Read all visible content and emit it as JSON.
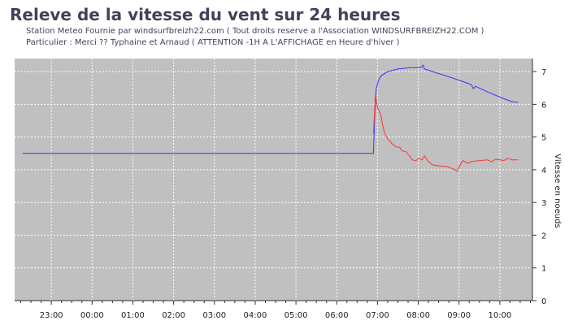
{
  "header": {
    "title": "Releve de la vitesse du vent sur 24 heures",
    "subtitle1": "Station Meteo Fournie  par windsurfbreizh22.com  ( Tout droits reserve a l'Association WINDSURFBREIZH22.COM )",
    "subtitle2": "Particulier :  Merci ?? Typhaine et Arnaud  ( ATTENTION -1H A L'AFFICHAGE en Heure d'hiver )"
  },
  "colors": {
    "plot_bg": "#c0c0c0",
    "series_max": "#3333ff",
    "series_avg": "#ff3333",
    "grid": "#ffffff"
  },
  "chart_data": {
    "type": "line",
    "ylabel": "Vitesse en noeuds",
    "ylim": [
      0,
      7.4
    ],
    "yticks": [
      0,
      1,
      2,
      3,
      4,
      5,
      6,
      7
    ],
    "xlim": [
      -1.9,
      10.8
    ],
    "xticks": [
      {
        "v": -1,
        "label": "23:00"
      },
      {
        "v": 0,
        "label": "00:00"
      },
      {
        "v": 1,
        "label": "01:00"
      },
      {
        "v": 2,
        "label": "02:00"
      },
      {
        "v": 3,
        "label": "03:00"
      },
      {
        "v": 4,
        "label": "04:00"
      },
      {
        "v": 5,
        "label": "05:00"
      },
      {
        "v": 6,
        "label": "06:00"
      },
      {
        "v": 7,
        "label": "07:00"
      },
      {
        "v": 8,
        "label": "08:00"
      },
      {
        "v": 9,
        "label": "09:00"
      },
      {
        "v": 10,
        "label": "10:00"
      }
    ],
    "grid": true,
    "series": [
      {
        "color": "#3333ff",
        "points": [
          [
            -1.7,
            4.5
          ],
          [
            6.9,
            4.5
          ],
          [
            6.93,
            5.6
          ],
          [
            6.97,
            6.5
          ],
          [
            7.03,
            6.75
          ],
          [
            7.1,
            6.88
          ],
          [
            7.25,
            7.0
          ],
          [
            7.5,
            7.08
          ],
          [
            7.8,
            7.12
          ],
          [
            8.0,
            7.12
          ],
          [
            8.08,
            7.14
          ],
          [
            8.12,
            7.2
          ],
          [
            8.15,
            7.08
          ],
          [
            8.4,
            6.98
          ],
          [
            8.7,
            6.86
          ],
          [
            9.0,
            6.74
          ],
          [
            9.3,
            6.6
          ],
          [
            9.35,
            6.48
          ],
          [
            9.4,
            6.55
          ],
          [
            9.7,
            6.38
          ],
          [
            10.0,
            6.22
          ],
          [
            10.3,
            6.08
          ],
          [
            10.45,
            6.06
          ]
        ]
      },
      {
        "color": "#ff3333",
        "points": [
          [
            6.9,
            5.1
          ],
          [
            6.95,
            6.3
          ],
          [
            7.0,
            5.9
          ],
          [
            7.08,
            5.7
          ],
          [
            7.12,
            5.4
          ],
          [
            7.18,
            5.1
          ],
          [
            7.25,
            4.95
          ],
          [
            7.35,
            4.8
          ],
          [
            7.45,
            4.7
          ],
          [
            7.55,
            4.68
          ],
          [
            7.6,
            4.58
          ],
          [
            7.7,
            4.55
          ],
          [
            7.8,
            4.4
          ],
          [
            7.85,
            4.3
          ],
          [
            7.95,
            4.28
          ],
          [
            8.0,
            4.35
          ],
          [
            8.1,
            4.3
          ],
          [
            8.15,
            4.42
          ],
          [
            8.25,
            4.25
          ],
          [
            8.35,
            4.15
          ],
          [
            8.5,
            4.12
          ],
          [
            8.6,
            4.1
          ],
          [
            8.7,
            4.1
          ],
          [
            8.8,
            4.05
          ],
          [
            8.9,
            4.0
          ],
          [
            8.95,
            3.95
          ],
          [
            9.05,
            4.2
          ],
          [
            9.1,
            4.28
          ],
          [
            9.2,
            4.2
          ],
          [
            9.3,
            4.25
          ],
          [
            9.5,
            4.28
          ],
          [
            9.7,
            4.3
          ],
          [
            9.8,
            4.25
          ],
          [
            9.9,
            4.32
          ],
          [
            10.0,
            4.3
          ],
          [
            10.1,
            4.28
          ],
          [
            10.2,
            4.35
          ],
          [
            10.3,
            4.3
          ],
          [
            10.45,
            4.3
          ]
        ]
      }
    ]
  }
}
